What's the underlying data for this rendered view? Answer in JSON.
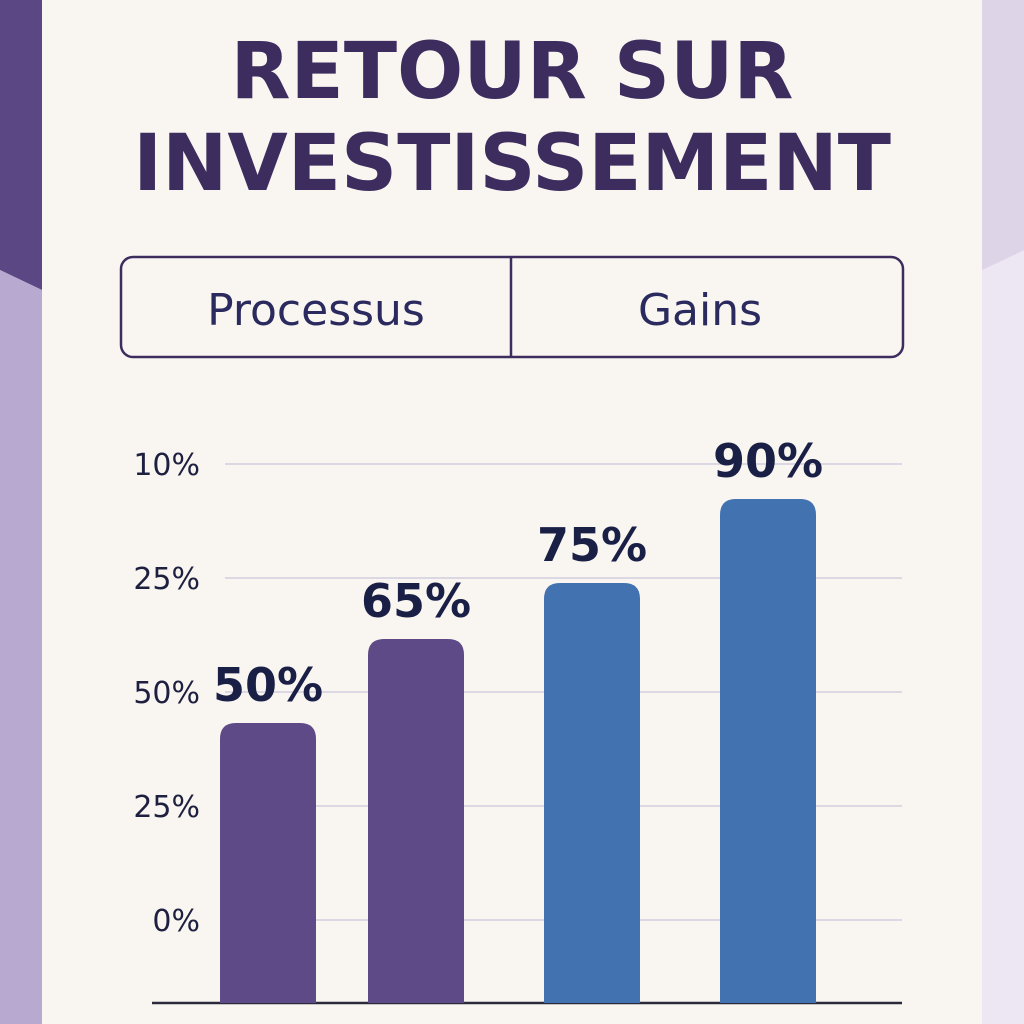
{
  "chart_data": {
    "type": "bar",
    "title": [
      "RETOUR SUR",
      "INVESTISSEMENT"
    ],
    "groups": [
      "Processus",
      "Gains"
    ],
    "y_axis_labels": [
      "10%",
      "25%",
      "50%",
      "25%",
      "0%"
    ],
    "values": [
      50,
      65,
      75,
      90
    ],
    "value_labels": [
      "50%",
      "65%",
      "75%",
      "90%"
    ],
    "colors": [
      "#5e4a86",
      "#5e4a86",
      "#4272b0",
      "#4272b0"
    ],
    "ylim": [
      0,
      100
    ],
    "grid": true
  }
}
